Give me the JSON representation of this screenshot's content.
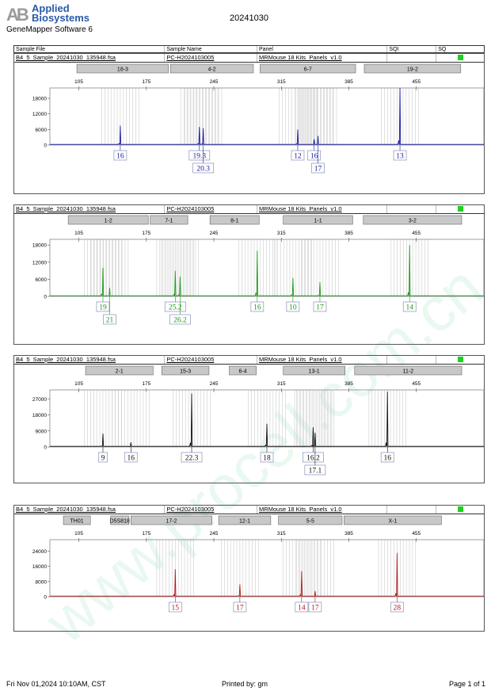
{
  "header": {
    "logo_mark": "AB",
    "logo_line1": "Applied",
    "logo_line2": "Biosystems",
    "software": "GeneMapper Software 6",
    "title": "20241030"
  },
  "columns": [
    "Sample File",
    "Sample Name",
    "Panel",
    "SQI",
    "SQ"
  ],
  "watermark": "www.procell.com.cn",
  "footer": {
    "date": "Fri Nov 01,2024 10:10AM, CST",
    "printed": "Printed by: gm",
    "page": "Page 1 of 1"
  },
  "chart_data": [
    {
      "type": "line",
      "sample_file": "B4_5_Sample_20241030_135948.fsa",
      "sample_name": "PC-H2024103005",
      "panel": "MRMouse 18 Kits_Panels_v1.0",
      "sq": "#1fd01f",
      "color": "#1a1aa0",
      "xlim": [
        75,
        525
      ],
      "xticks": [
        105,
        175,
        245,
        315,
        385,
        455
      ],
      "ylim": [
        0,
        22000
      ],
      "yticks": [
        0,
        6000,
        12000,
        18000
      ],
      "markers": [
        {
          "label": "18-3",
          "range": [
            103,
            198
          ]
        },
        {
          "label": "4-2",
          "range": [
            200,
            286
          ]
        },
        {
          "label": "6-7",
          "range": [
            293,
            392
          ]
        },
        {
          "label": "19-2",
          "range": [
            401,
            501
          ]
        }
      ],
      "peaks": [
        {
          "x": 148,
          "y": 7500,
          "allele": "16",
          "row": 0
        },
        {
          "x": 230,
          "y": 7000,
          "allele": "19.3",
          "row": 0
        },
        {
          "x": 234,
          "y": 6500,
          "allele": "20.3",
          "row": 1
        },
        {
          "x": 332,
          "y": 6000,
          "allele": "12",
          "row": 0
        },
        {
          "x": 349,
          "y": 2200,
          "allele": "16",
          "row": 0
        },
        {
          "x": 353,
          "y": 3500,
          "allele": "17",
          "row": 1
        },
        {
          "x": 438,
          "y": 22000,
          "allele": "13",
          "row": 0
        }
      ]
    },
    {
      "type": "line",
      "sample_file": "B4_5_Sample_20241030_135948.fsa",
      "sample_name": "PC-H2024103005",
      "panel": "MRMouse 18 Kits_Panels_v1.0",
      "sq": "#1fd01f",
      "color": "#1a9a1a",
      "xlim": [
        75,
        525
      ],
      "xticks": [
        105,
        175,
        245,
        315,
        385,
        455
      ],
      "ylim": [
        0,
        20000
      ],
      "yticks": [
        0,
        6000,
        12000,
        18000
      ],
      "markers": [
        {
          "label": "1-2",
          "range": [
            94,
            177
          ]
        },
        {
          "label": "7-1",
          "range": [
            179,
            218
          ]
        },
        {
          "label": "8-1",
          "range": [
            241,
            292
          ]
        },
        {
          "label": "1-1",
          "range": [
            317,
            389
          ]
        },
        {
          "label": "3-2",
          "range": [
            400,
            502
          ]
        }
      ],
      "peaks": [
        {
          "x": 130,
          "y": 10000,
          "allele": "19",
          "row": 0
        },
        {
          "x": 137,
          "y": 3000,
          "allele": "21",
          "row": 1
        },
        {
          "x": 205,
          "y": 9000,
          "allele": "25.2",
          "row": 0
        },
        {
          "x": 210,
          "y": 7000,
          "allele": "26.2",
          "row": 1
        },
        {
          "x": 290,
          "y": 16000,
          "allele": "16",
          "row": 0
        },
        {
          "x": 327,
          "y": 6500,
          "allele": "10",
          "row": 0
        },
        {
          "x": 355,
          "y": 5000,
          "allele": "17",
          "row": 0
        },
        {
          "x": 448,
          "y": 18000,
          "allele": "14",
          "row": 0
        }
      ]
    },
    {
      "type": "line",
      "sample_file": "B4_5_Sample_20241030_135948.fsa",
      "sample_name": "PC-H2024103005",
      "panel": "MRMouse 18 Kits_Panels_v1.0",
      "sq": "#1fd01f",
      "color": "#111111",
      "xlim": [
        75,
        525
      ],
      "xticks": [
        105,
        175,
        245,
        315,
        385,
        455
      ],
      "ylim": [
        0,
        32000
      ],
      "yticks": [
        0,
        9000,
        18000,
        27000
      ],
      "markers": [
        {
          "label": "2-1",
          "range": [
            112,
            182
          ]
        },
        {
          "label": "15-3",
          "range": [
            191,
            240
          ]
        },
        {
          "label": "6-4",
          "range": [
            261,
            289
          ]
        },
        {
          "label": "13-1",
          "range": [
            317,
            381
          ]
        },
        {
          "label": "11-2",
          "range": [
            391,
            502
          ]
        }
      ],
      "peaks": [
        {
          "x": 130,
          "y": 7500,
          "allele": "9",
          "row": 0
        },
        {
          "x": 159,
          "y": 2500,
          "allele": "16",
          "row": 0
        },
        {
          "x": 222,
          "y": 30000,
          "allele": "22.3",
          "row": 0
        },
        {
          "x": 300,
          "y": 13000,
          "allele": "18",
          "row": 0
        },
        {
          "x": 348,
          "y": 11000,
          "allele": "16.2",
          "row": 0
        },
        {
          "x": 350,
          "y": 8000,
          "allele": "17.1",
          "row": 1
        },
        {
          "x": 425,
          "y": 31000,
          "allele": "16",
          "row": 0
        }
      ]
    },
    {
      "type": "line",
      "sample_file": "B4_5_Sample_20241030_135948.fsa",
      "sample_name": "PC-H2024103005",
      "panel": "MRMouse 18 Kits_Panels_v1.0",
      "sq": "#1fd01f",
      "color": "#b01a1a",
      "xlim": [
        75,
        525
      ],
      "xticks": [
        105,
        175,
        245,
        315,
        385,
        455
      ],
      "ylim": [
        0,
        30000
      ],
      "yticks": [
        0,
        8000,
        16000,
        24000
      ],
      "markers": [
        {
          "label": "TH01",
          "range": [
            89,
            117
          ]
        },
        {
          "label": "D5S818",
          "range": [
            138,
            157
          ]
        },
        {
          "label": "17-2",
          "range": [
            159,
            243
          ]
        },
        {
          "label": "12-1",
          "range": [
            250,
            304
          ]
        },
        {
          "label": "5-5",
          "range": [
            312,
            378
          ]
        },
        {
          "label": "X-1",
          "range": [
            380,
            481
          ]
        }
      ],
      "peaks": [
        {
          "x": 205,
          "y": 14500,
          "allele": "15",
          "row": 0
        },
        {
          "x": 272,
          "y": 6500,
          "allele": "17",
          "row": 0
        },
        {
          "x": 336,
          "y": 13500,
          "allele": "14",
          "row": 0
        },
        {
          "x": 350,
          "y": 3000,
          "allele": "17",
          "row": 0
        },
        {
          "x": 435,
          "y": 23000,
          "allele": "28",
          "row": 0
        }
      ]
    }
  ]
}
